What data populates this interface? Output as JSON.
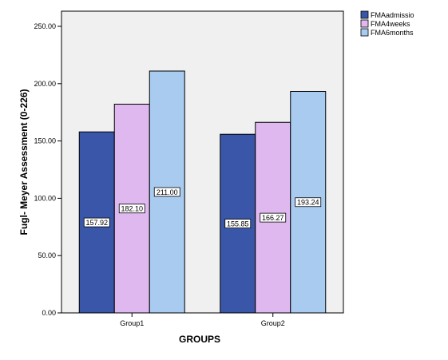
{
  "chart_data": {
    "type": "bar",
    "title": "",
    "xlabel": "GROUPS",
    "ylabel": "Fugl- Meyer Assessment (0-226)",
    "categories": [
      "Group1",
      "Group2"
    ],
    "series": [
      {
        "name": "FMAadmissio",
        "values": [
          157.92,
          155.85
        ],
        "labels": [
          "157.92",
          "155.85"
        ],
        "color": "#3a56a8"
      },
      {
        "name": "FMA4weeks",
        "values": [
          182.1,
          166.27
        ],
        "labels": [
          "182.10",
          "166.27"
        ],
        "color": "#dfb8ef"
      },
      {
        "name": "FMA6months",
        "values": [
          211.0,
          193.24
        ],
        "labels": [
          "211.00",
          "193.24"
        ],
        "color": "#a8cbef"
      }
    ],
    "ylim": [
      0,
      250
    ],
    "yticks": [
      0,
      50,
      100,
      150,
      200,
      250
    ],
    "ytick_labels": [
      "0.00",
      "50.00",
      "100.00",
      "150.00",
      "200.00",
      "250.00"
    ],
    "grid": false,
    "legend_position": "top-right",
    "plot_background": "#f0f0f0"
  }
}
